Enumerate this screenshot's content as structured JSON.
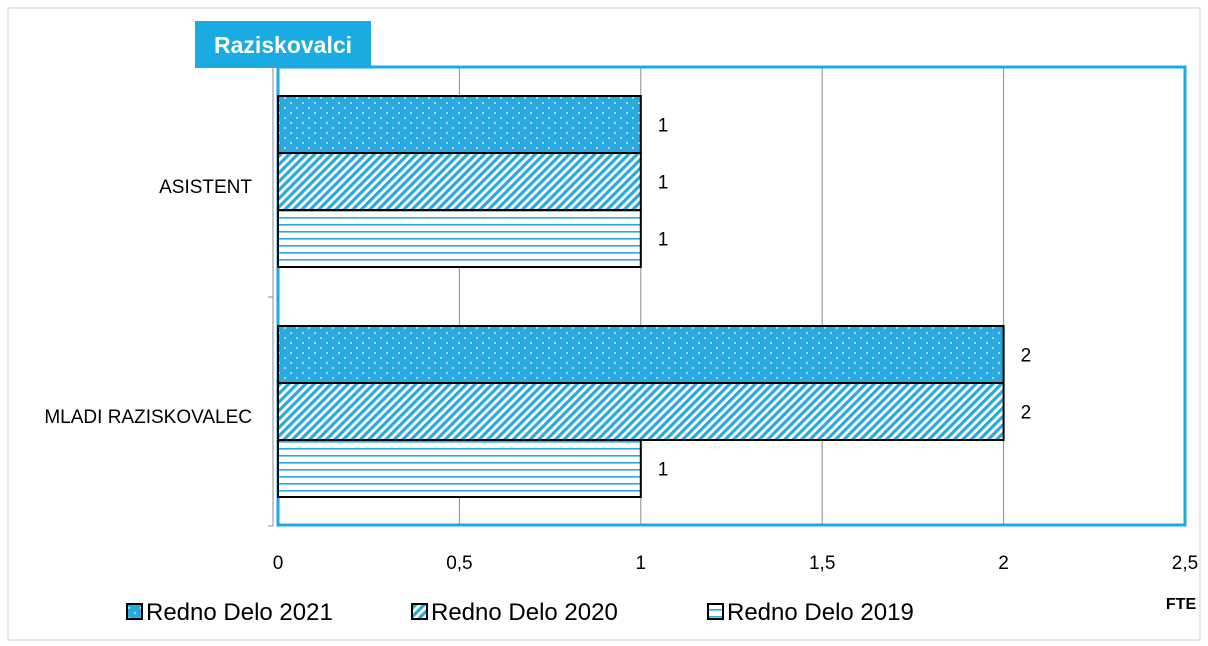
{
  "chart_data": {
    "type": "bar",
    "orientation": "horizontal",
    "title": "Raziskovalci",
    "categories": [
      "ASISTENT",
      "MLADI RAZISKOVALEC"
    ],
    "series": [
      {
        "name": "Redno Delo 2021",
        "values": [
          1,
          2
        ],
        "pattern": "dots"
      },
      {
        "name": "Redno Delo 2020",
        "values": [
          1,
          2
        ],
        "pattern": "diagonal"
      },
      {
        "name": "Redno Delo 2019",
        "values": [
          1,
          1
        ],
        "pattern": "horizontal"
      }
    ],
    "xlabel": "FTE",
    "ylabel": "",
    "xlim": [
      0,
      2.5
    ],
    "x_ticks": [
      "0",
      "0,5",
      "1",
      "1,5",
      "2",
      "2,5"
    ],
    "grid": "vertical",
    "legend_position": "bottom",
    "colors": {
      "accent": "#1AABE3",
      "bar_fill": "#29A9E0",
      "pattern_light": "#ffffff",
      "outline": "#000000",
      "grid": "#8c8c8c",
      "text": "#000000"
    }
  }
}
